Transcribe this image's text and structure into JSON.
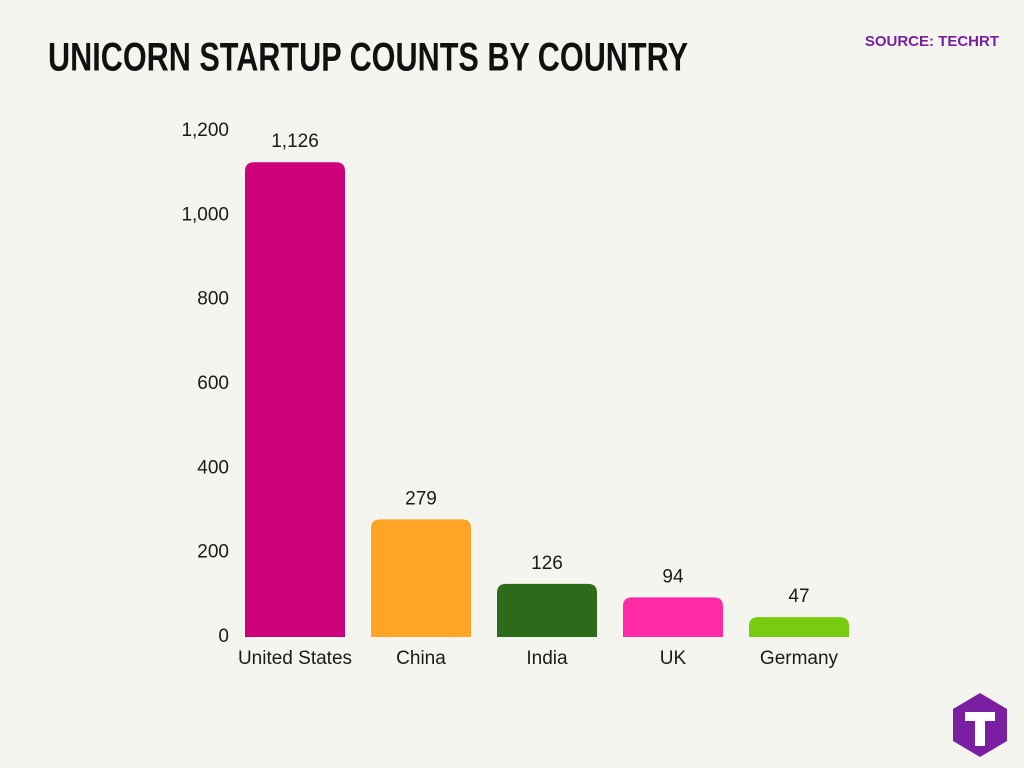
{
  "chart_data": {
    "type": "bar",
    "title": "UNICORN STARTUP COUNTS BY COUNTRY",
    "source": "SOURCE: TECHRT",
    "categories": [
      "United States",
      "China",
      "India",
      "UK",
      "Germany"
    ],
    "values": [
      1126,
      279,
      126,
      94,
      47
    ],
    "value_labels": [
      "1,126",
      "279",
      "126",
      "94",
      "47"
    ],
    "colors": [
      "#cc007a",
      "#ffa424",
      "#2d6a1a",
      "#ff2aa6",
      "#78cc10"
    ],
    "ylim": [
      0,
      1200
    ],
    "yticks": [
      0,
      200,
      400,
      600,
      800,
      {
        "value": 1000,
        "label": "1,000"
      },
      {
        "value": 1200,
        "label": "1,200"
      }
    ]
  }
}
